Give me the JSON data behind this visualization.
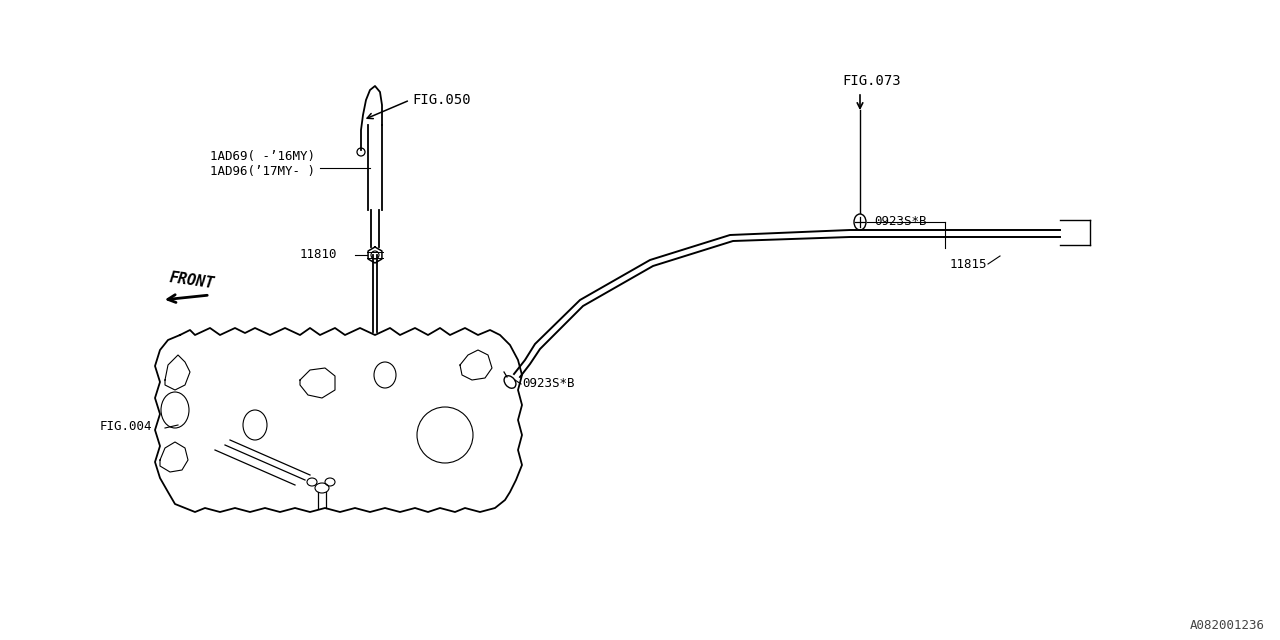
{
  "bg_color": "#ffffff",
  "line_color": "#000000",
  "fig_width": 12.8,
  "fig_height": 6.4,
  "watermark": "A082001236",
  "labels": {
    "fig050": "FIG.050",
    "fig073": "FIG.073",
    "fig004": "FIG.004",
    "part1a": "1AD69( -’16MY)",
    "part1b": "1AD96(’17MY- )",
    "part2": "11810",
    "part3": "0923S*B",
    "part4": "11815",
    "part5": "0923S*B",
    "front": "FRONT"
  }
}
